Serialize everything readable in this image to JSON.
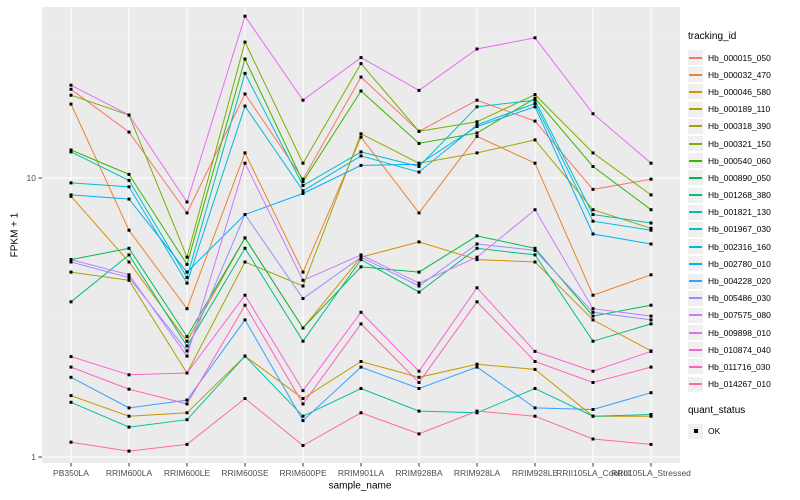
{
  "figure": {
    "panel_bg": "#EBEBEB",
    "grid_color": "#FFFFFF",
    "tick_text_color": "#4D4D4D"
  },
  "legend": {
    "tracking_title": "tracking_id",
    "quant_title": "quant_status",
    "quant_items": [
      "OK"
    ],
    "quant_marker": "black-square"
  },
  "chart_data": {
    "type": "line",
    "title": "",
    "xlabel": "sample_name",
    "ylabel": "FPKM + 1",
    "y_scale": "log10",
    "y_ticks": [
      1,
      10
    ],
    "ylim": [
      0.95,
      42
    ],
    "grid": true,
    "legend_position": "right",
    "marker": "filled-square",
    "marker_color": "#000000",
    "categories": [
      "PB350LA",
      "RRIM600LA",
      "RRIM600LE",
      "RRIM600SE",
      "RRIM600PE",
      "RRIM901LA",
      "RRIM928BA",
      "RRIM928LA",
      "RRIM928LE",
      "RRII105LA_Control",
      "RRII105LA_Stressed"
    ],
    "series": [
      {
        "name": "Hb_000015_050",
        "color": "#F8766D",
        "values": [
          20.8,
          14.6,
          7.5,
          20.0,
          9.9,
          23.0,
          14.7,
          19.0,
          16.0,
          9.1,
          9.9
        ]
      },
      {
        "name": "Hb_000032_470",
        "color": "#EA8331",
        "values": [
          18.4,
          6.5,
          3.4,
          12.3,
          4.6,
          14.0,
          7.5,
          14.1,
          11.3,
          3.8,
          4.5
        ]
      },
      {
        "name": "Hb_000046_580",
        "color": "#D89000",
        "values": [
          8.6,
          5.0,
          2.6,
          6.1,
          2.9,
          5.2,
          5.9,
          5.1,
          5.0,
          3.1,
          2.4
        ]
      },
      {
        "name": "Hb_000189_110",
        "color": "#C09B00",
        "values": [
          1.66,
          1.4,
          1.44,
          2.3,
          1.62,
          2.2,
          1.93,
          2.15,
          2.06,
          1.4,
          1.4
        ]
      },
      {
        "name": "Hb_000318_390",
        "color": "#A3A500",
        "values": [
          4.6,
          4.3,
          2.0,
          5.0,
          4.1,
          14.4,
          11.3,
          12.3,
          13.7,
          7.7,
          6.6
        ]
      },
      {
        "name": "Hb_000321_150",
        "color": "#7CAE00",
        "values": [
          19.8,
          16.8,
          5.2,
          30.7,
          11.3,
          25.7,
          14.7,
          15.9,
          19.9,
          12.3,
          8.7
        ]
      },
      {
        "name": "Hb_000540_060",
        "color": "#39B600",
        "values": [
          12.6,
          10.3,
          4.9,
          26.7,
          9.7,
          20.5,
          13.3,
          14.5,
          19.3,
          11.0,
          7.7
        ]
      },
      {
        "name": "Hb_000890_050",
        "color": "#00BB4E",
        "values": [
          5.1,
          5.6,
          2.7,
          6.1,
          2.9,
          4.8,
          4.6,
          6.2,
          5.6,
          3.2,
          3.5
        ]
      },
      {
        "name": "Hb_001268_380",
        "color": "#00BF7D",
        "values": [
          3.6,
          5.3,
          2.5,
          5.6,
          2.6,
          5.1,
          3.9,
          5.6,
          5.3,
          2.6,
          3.0
        ]
      },
      {
        "name": "Hb_001821_130",
        "color": "#00C1A3",
        "values": [
          1.57,
          1.28,
          1.36,
          2.3,
          1.4,
          1.76,
          1.46,
          1.44,
          1.76,
          1.4,
          1.42
        ]
      },
      {
        "name": "Hb_001967_030",
        "color": "#00BFC4",
        "values": [
          12.4,
          9.8,
          4.4,
          23.7,
          9.4,
          12.4,
          11.0,
          18.0,
          19.0,
          7.4,
          6.9
        ]
      },
      {
        "name": "Hb_002316_160",
        "color": "#00BAE0",
        "values": [
          9.6,
          9.3,
          4.2,
          18.1,
          9.0,
          12.0,
          10.5,
          15.5,
          18.5,
          7.0,
          6.5
        ]
      },
      {
        "name": "Hb_002780_010",
        "color": "#00B0F6",
        "values": [
          8.7,
          8.4,
          4.6,
          7.4,
          8.8,
          11.1,
          11.2,
          15.3,
          18.0,
          6.3,
          5.8
        ]
      },
      {
        "name": "Hb_004228_020",
        "color": "#35A2FF",
        "values": [
          1.93,
          1.5,
          1.6,
          3.1,
          1.35,
          2.1,
          1.76,
          2.1,
          1.5,
          1.48,
          1.7
        ]
      },
      {
        "name": "Hb_005486_030",
        "color": "#9590FF",
        "values": [
          5.0,
          4.4,
          2.4,
          7.4,
          3.7,
          5.2,
          4.1,
          5.8,
          5.5,
          3.3,
          3.1
        ]
      },
      {
        "name": "Hb_007575_080",
        "color": "#C77CFF",
        "values": [
          5.1,
          4.5,
          2.3,
          11.3,
          4.3,
          5.3,
          4.2,
          5.2,
          7.7,
          3.4,
          3.2
        ]
      },
      {
        "name": "Hb_009898_010",
        "color": "#E76BF3",
        "values": [
          21.5,
          16.8,
          8.2,
          38.0,
          19.0,
          27.0,
          20.6,
          29.0,
          31.8,
          17.0,
          11.3
        ]
      },
      {
        "name": "Hb_010874_040",
        "color": "#FA62DB",
        "values": [
          2.29,
          1.97,
          2.0,
          3.8,
          1.73,
          3.3,
          2.03,
          4.04,
          2.39,
          2.03,
          2.39
        ]
      },
      {
        "name": "Hb_011716_030",
        "color": "#FF62BC",
        "values": [
          2.1,
          1.75,
          1.55,
          3.5,
          1.55,
          3.0,
          1.85,
          3.6,
          2.2,
          1.85,
          2.1
        ]
      },
      {
        "name": "Hb_014267_010",
        "color": "#FF6A98",
        "values": [
          1.13,
          1.05,
          1.11,
          1.62,
          1.1,
          1.44,
          1.21,
          1.46,
          1.4,
          1.16,
          1.11
        ]
      }
    ]
  }
}
